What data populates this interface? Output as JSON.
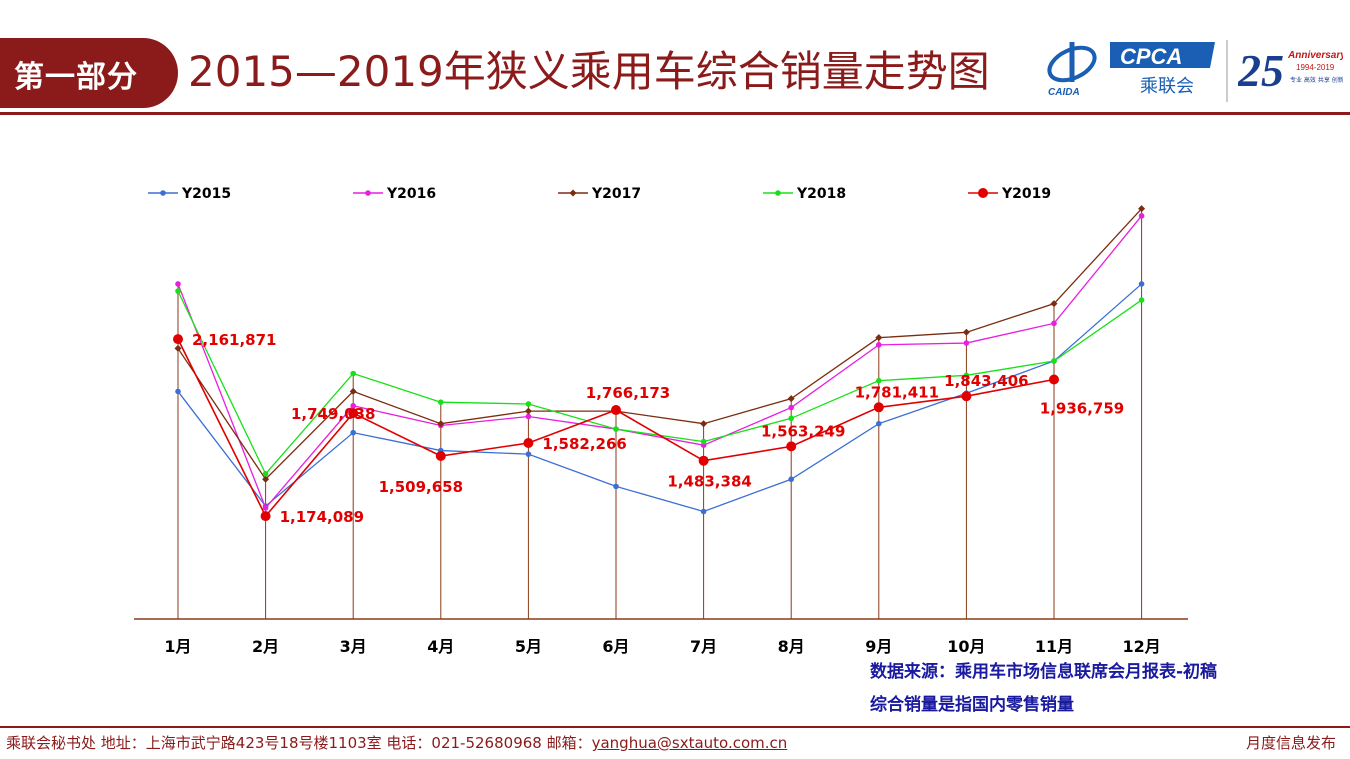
{
  "header": {
    "section_label": "第一部分",
    "title": "2015—2019年狭义乘用车综合销量走势图"
  },
  "logos": {
    "caida_text": "CAIDA",
    "cpca_text": "CPCA",
    "cpca_cn": "乘联会",
    "anniversary_number": "25",
    "anniversary_word": "Anniversary",
    "anniversary_years": "1994-2019",
    "anniversary_tagline": "专业 高效 共享 创新"
  },
  "colors": {
    "brand": "#8b1a1a",
    "note_text": "#1a1aa0",
    "label_red": "#e00000"
  },
  "chart_data": {
    "type": "line",
    "categories": [
      "1月",
      "2月",
      "3月",
      "4月",
      "5月",
      "6月",
      "7月",
      "8月",
      "9月",
      "10月",
      "11月",
      "12月"
    ],
    "ylim": [
      600000,
      3050000
    ],
    "grid": false,
    "legend_position": "top",
    "series": [
      {
        "name": "Y2015",
        "color": "#3b6fd4",
        "marker": "dot",
        "values": [
          1870000,
          1230000,
          1640000,
          1540000,
          1520000,
          1340000,
          1200000,
          1380000,
          1690000,
          1860000,
          2040000,
          2470000
        ]
      },
      {
        "name": "Y2016",
        "color": "#e91ee0",
        "marker": "dot",
        "values": [
          2470000,
          1220000,
          1790000,
          1680000,
          1730000,
          1660000,
          1570000,
          1780000,
          2130000,
          2140000,
          2250000,
          2850000
        ]
      },
      {
        "name": "Y2017",
        "color": "#7b2d10",
        "marker": "diamond",
        "values": [
          2110000,
          1380000,
          1870000,
          1690000,
          1760000,
          1760000,
          1690000,
          1830000,
          2170000,
          2200000,
          2360000,
          2890000
        ]
      },
      {
        "name": "Y2018",
        "color": "#18e018",
        "marker": "dot",
        "values": [
          2430000,
          1410000,
          1970000,
          1810000,
          1800000,
          1660000,
          1590000,
          1720000,
          1930000,
          1960000,
          2040000,
          2380000
        ]
      },
      {
        "name": "Y2019",
        "color": "#e00000",
        "marker": "circle",
        "values": [
          2161871,
          1174089,
          1749038,
          1509658,
          1582266,
          1766173,
          1483384,
          1563249,
          1781411,
          1843406,
          1936759,
          null
        ]
      }
    ],
    "data_labels": [
      {
        "series": "Y2019",
        "index": 0,
        "text": "2,161,871"
      },
      {
        "series": "Y2019",
        "index": 1,
        "text": "1,174,089"
      },
      {
        "series": "Y2019",
        "index": 2,
        "text": "1,749,038"
      },
      {
        "series": "Y2019",
        "index": 3,
        "text": "1,509,658"
      },
      {
        "series": "Y2019",
        "index": 4,
        "text": "1,582,266"
      },
      {
        "series": "Y2019",
        "index": 5,
        "text": "1,766,173"
      },
      {
        "series": "Y2019",
        "index": 6,
        "text": "1,483,384"
      },
      {
        "series": "Y2019",
        "index": 7,
        "text": "1,563,249"
      },
      {
        "series": "Y2019",
        "index": 8,
        "text": "1,781,411"
      },
      {
        "series": "Y2019",
        "index": 9,
        "text": "1,843,406"
      },
      {
        "series": "Y2019",
        "index": 10,
        "text": "1,936,759"
      }
    ]
  },
  "notes": {
    "source": "数据来源：乘用车市场信息联席会月报表-初稿",
    "definition": "综合销量是指国内零售销量"
  },
  "footer": {
    "contact_prefix": "乘联会秘书处   地址：上海市武宁路423号18号楼1103室  电话：021-52680968   邮箱：",
    "email": "yanghua@sxtauto.com.cn",
    "release": "月度信息发布"
  }
}
